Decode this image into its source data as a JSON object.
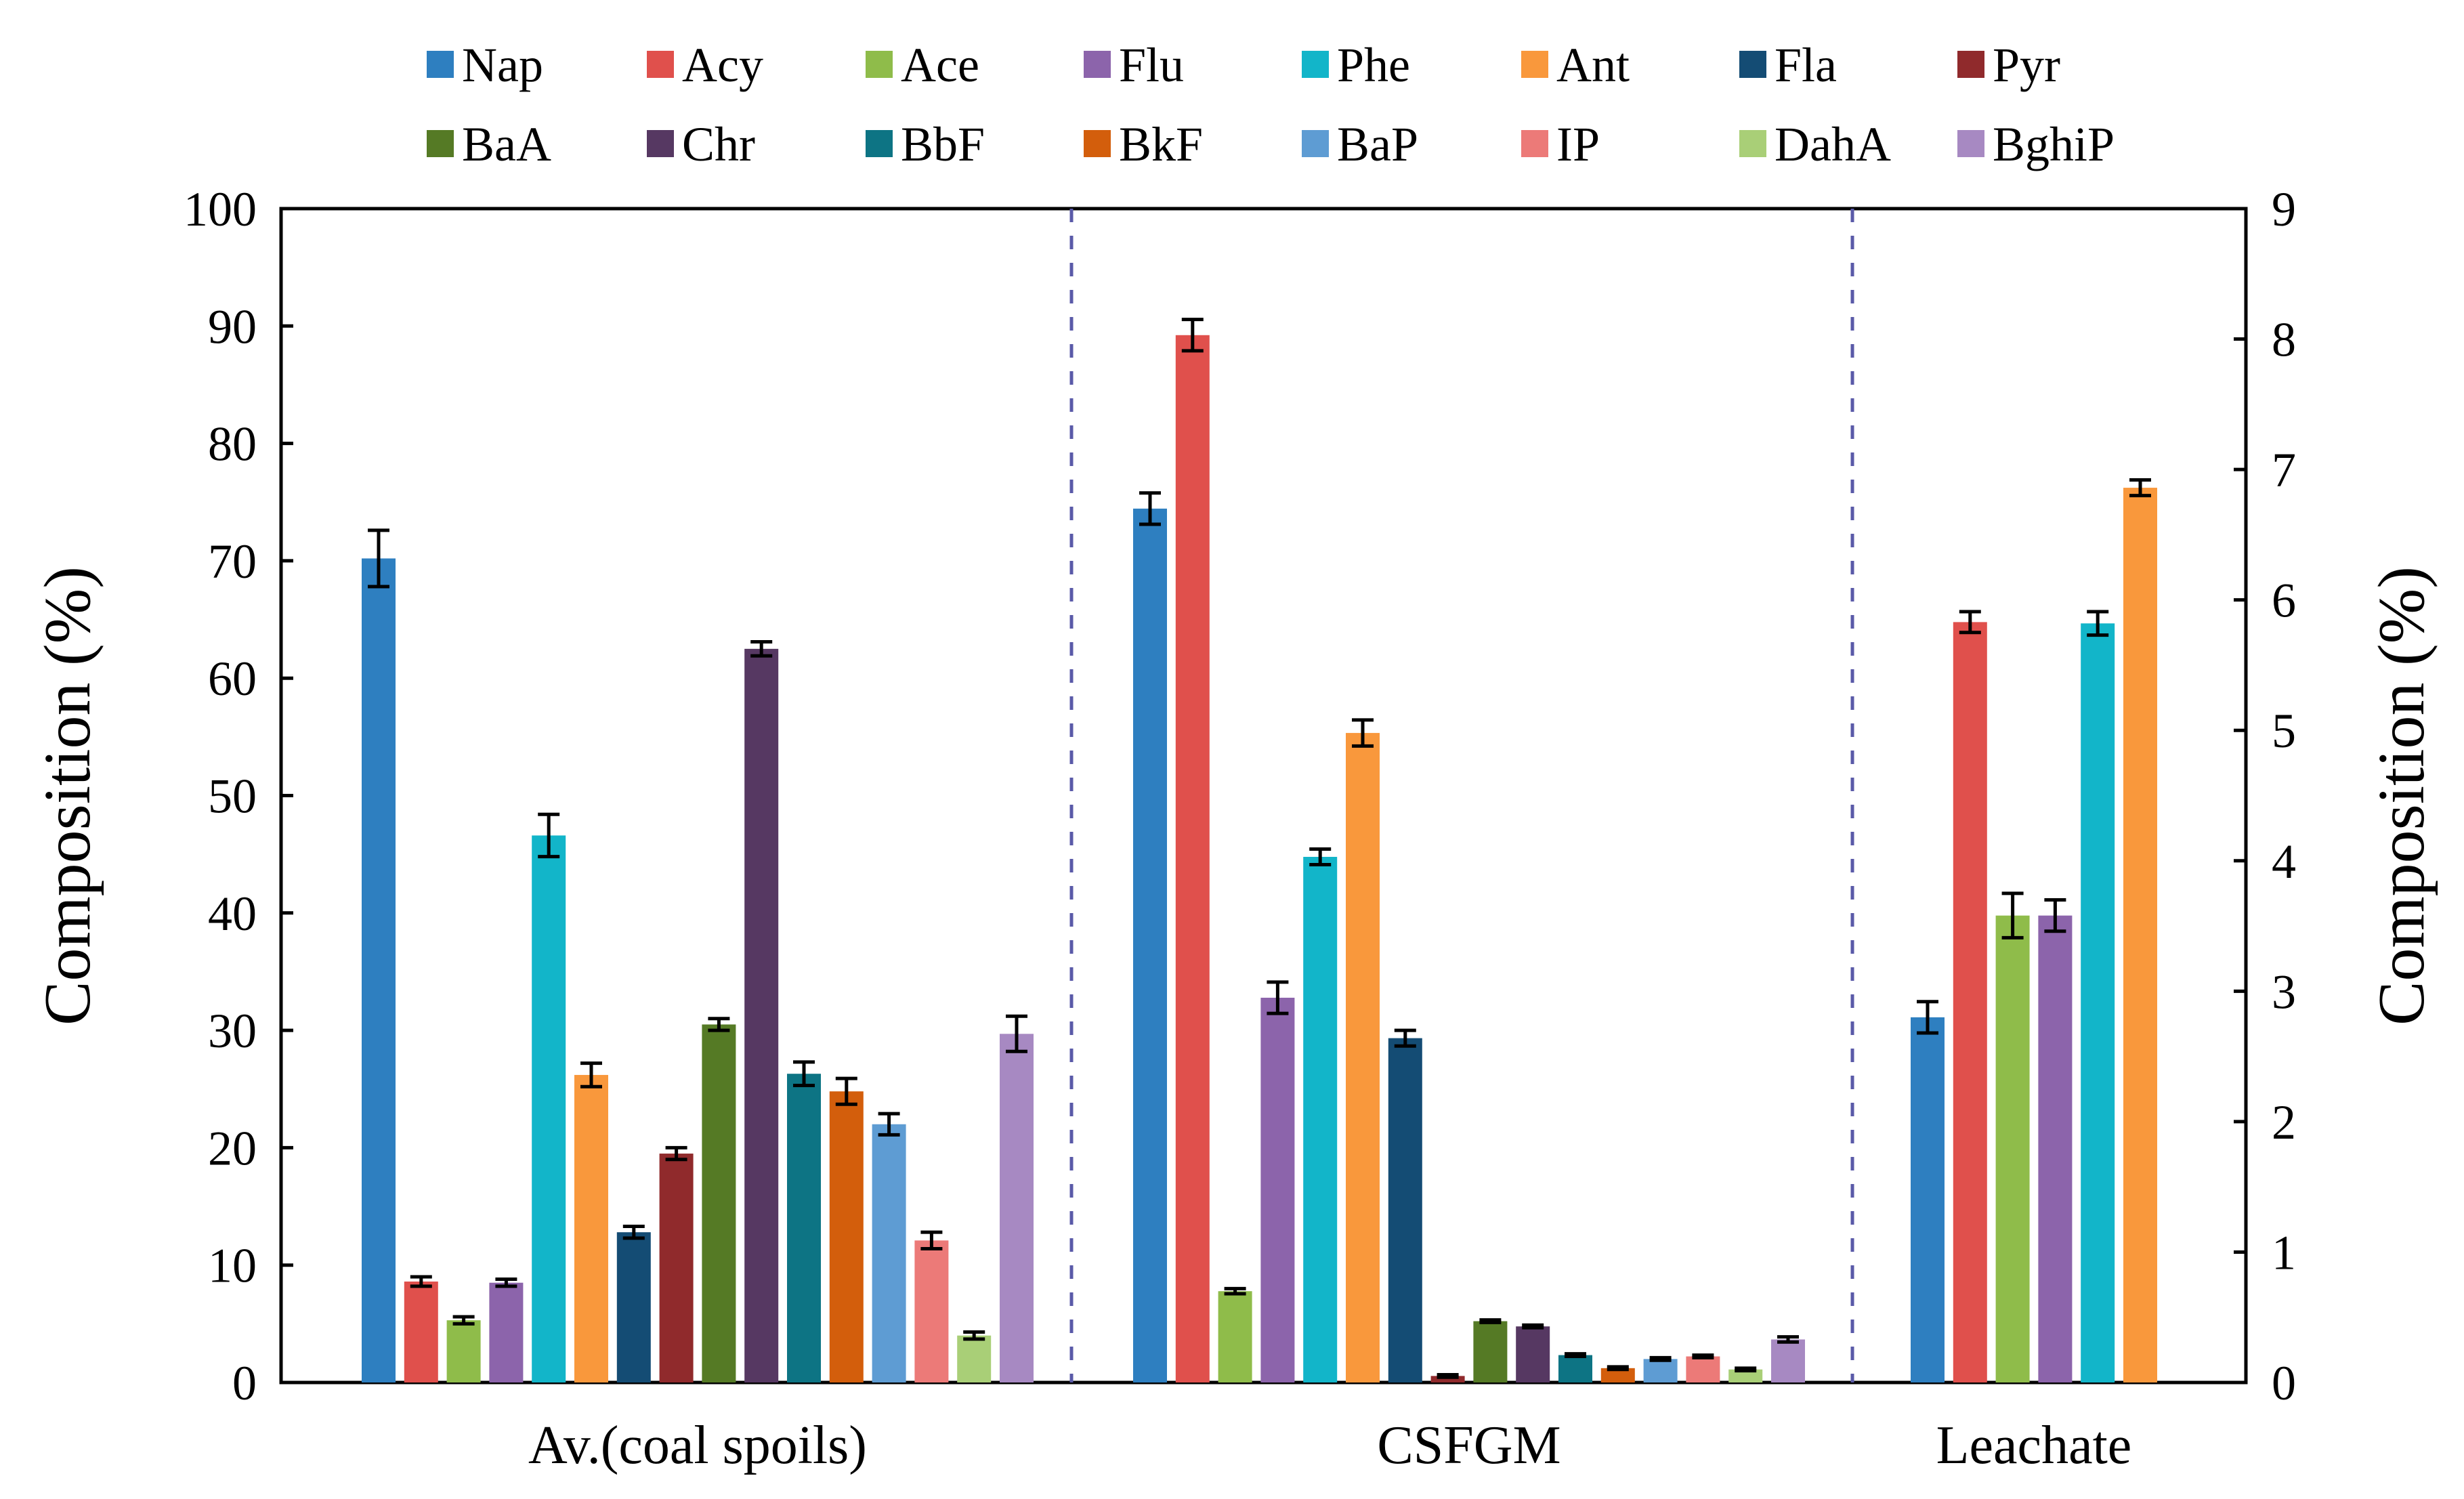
{
  "chart_data": {
    "type": "bar",
    "title": "",
    "xlabel": "",
    "ylabel_left": "Composition (%)",
    "ylabel_right": "Composition (%)",
    "ylim_left": [
      0,
      100
    ],
    "ylim_right": [
      0,
      9
    ],
    "yticks_left": [
      "0",
      "10",
      "20",
      "30",
      "40",
      "50",
      "60",
      "70",
      "80",
      "90",
      "100"
    ],
    "yticks_right": [
      "0",
      "1",
      "2",
      "3",
      "4",
      "5",
      "6",
      "7",
      "8",
      "9"
    ],
    "legend_position": "top",
    "grid": false,
    "series": [
      {
        "name": "Nap",
        "color": "#2e7fc0"
      },
      {
        "name": "Acy",
        "color": "#e0504c"
      },
      {
        "name": "Ace",
        "color": "#8fbc4a"
      },
      {
        "name": "Flu",
        "color": "#8c64ab"
      },
      {
        "name": "Phe",
        "color": "#12b5c9"
      },
      {
        "name": "Ant",
        "color": "#f9983c"
      },
      {
        "name": "Fla",
        "color": "#144c74"
      },
      {
        "name": "Pyr",
        "color": "#902a2c"
      },
      {
        "name": "BaA",
        "color": "#557a25"
      },
      {
        "name": "Chr",
        "color": "#563862"
      },
      {
        "name": "BbF",
        "color": "#0d7484"
      },
      {
        "name": "BkF",
        "color": "#d35e0c"
      },
      {
        "name": "BaP",
        "color": "#5e9cd3"
      },
      {
        "name": "IP",
        "color": "#ec7a78"
      },
      {
        "name": "DahA",
        "color": "#a9cf77"
      },
      {
        "name": "BghiP",
        "color": "#a789c2"
      }
    ],
    "groups": [
      {
        "label": "Av.(coal spoils)",
        "axis": "left",
        "bars": [
          {
            "series": "Nap",
            "value": 70.2,
            "error": 2.4
          },
          {
            "series": "Acy",
            "value": 8.6,
            "error": 0.4
          },
          {
            "series": "Ace",
            "value": 5.3,
            "error": 0.3
          },
          {
            "series": "Flu",
            "value": 8.5,
            "error": 0.3
          },
          {
            "series": "Phe",
            "value": 46.6,
            "error": 1.8
          },
          {
            "series": "Ant",
            "value": 26.2,
            "error": 1.0
          },
          {
            "series": "Fla",
            "value": 12.8,
            "error": 0.5
          },
          {
            "series": "Pyr",
            "value": 19.5,
            "error": 0.5
          },
          {
            "series": "BaA",
            "value": 30.5,
            "error": 0.5
          },
          {
            "series": "Chr",
            "value": 62.5,
            "error": 0.6
          },
          {
            "series": "BbF",
            "value": 26.3,
            "error": 1.0
          },
          {
            "series": "BkF",
            "value": 24.8,
            "error": 1.1
          },
          {
            "series": "BaP",
            "value": 22.0,
            "error": 0.9
          },
          {
            "series": "IP",
            "value": 12.1,
            "error": 0.7
          },
          {
            "series": "DahA",
            "value": 4.0,
            "error": 0.3
          },
          {
            "series": "BghiP",
            "value": 29.7,
            "error": 1.5
          }
        ]
      },
      {
        "label": "CSFGM",
        "axis": "right",
        "bars": [
          {
            "series": "Nap",
            "value": 6.7,
            "error": 0.12
          },
          {
            "series": "Acy",
            "value": 8.03,
            "error": 0.12
          },
          {
            "series": "Ace",
            "value": 0.7,
            "error": 0.02
          },
          {
            "series": "Flu",
            "value": 2.95,
            "error": 0.12
          },
          {
            "series": "Phe",
            "value": 4.03,
            "error": 0.06
          },
          {
            "series": "Ant",
            "value": 4.98,
            "error": 0.1
          },
          {
            "series": "Fla",
            "value": 2.64,
            "error": 0.06
          },
          {
            "series": "Pyr",
            "value": 0.05,
            "error": 0.01
          },
          {
            "series": "BaA",
            "value": 0.47,
            "error": 0.01
          },
          {
            "series": "Chr",
            "value": 0.43,
            "error": 0.01
          },
          {
            "series": "BbF",
            "value": 0.21,
            "error": 0.01
          },
          {
            "series": "BkF",
            "value": 0.11,
            "error": 0.01
          },
          {
            "series": "BaP",
            "value": 0.18,
            "error": 0.01
          },
          {
            "series": "IP",
            "value": 0.2,
            "error": 0.01
          },
          {
            "series": "DahA",
            "value": 0.1,
            "error": 0.01
          },
          {
            "series": "BghiP",
            "value": 0.33,
            "error": 0.02
          }
        ]
      },
      {
        "label": "Leachate",
        "axis": "right",
        "bars": [
          {
            "series": "Nap",
            "value": 2.8,
            "error": 0.12
          },
          {
            "series": "Acy",
            "value": 5.83,
            "error": 0.08
          },
          {
            "series": "Ace",
            "value": 3.58,
            "error": 0.17
          },
          {
            "series": "Flu",
            "value": 3.58,
            "error": 0.12
          },
          {
            "series": "Phe",
            "value": 5.82,
            "error": 0.09
          },
          {
            "series": "Ant",
            "value": 6.86,
            "error": 0.06
          }
        ]
      }
    ]
  }
}
